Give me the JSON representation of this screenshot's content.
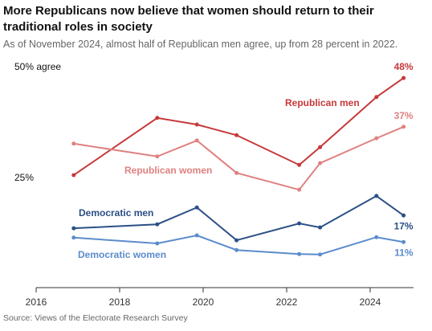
{
  "chart_data": {
    "type": "line",
    "title": "More Republicans now believe that women should return to their traditional roles in society",
    "subtitle": "As of November 2024, almost half of Republican men agree, up from 28 percent in 2022.",
    "source": "Source: Views of the Electorate Research Survey",
    "x": [
      2016.9,
      2018.9,
      2019.85,
      2020.8,
      2022.3,
      2022.8,
      2024.15,
      2024.8
    ],
    "series": [
      {
        "name": "Republican men",
        "color": "#c6393a",
        "values": [
          26.1,
          39.0,
          37.5,
          35.1,
          28.4,
          32.4,
          43.7,
          48
        ],
        "value_labels": [
          null,
          null,
          null,
          null,
          null,
          null,
          null,
          "48%"
        ]
      },
      {
        "name": "Republican women",
        "color": "#e08080",
        "values": [
          33.2,
          30.3,
          33.9,
          26.6,
          22.8,
          28.8,
          34.4,
          37
        ],
        "value_labels": [
          null,
          null,
          null,
          null,
          null,
          null,
          null,
          "37%"
        ]
      },
      {
        "name": "Democratic men",
        "color": "#2b4f86",
        "values": [
          14.1,
          15.0,
          18.8,
          11.4,
          15.2,
          14.3,
          21.4,
          17
        ],
        "value_labels": [
          null,
          null,
          null,
          null,
          null,
          null,
          null,
          "17%"
        ]
      },
      {
        "name": "Democratic women",
        "color": "#5b8ccc",
        "values": [
          12.0,
          10.7,
          12.5,
          9.2,
          8.3,
          8.2,
          12.1,
          11
        ],
        "value_labels": [
          null,
          null,
          null,
          null,
          null,
          null,
          null,
          "11%"
        ]
      }
    ],
    "xlim": [
      2016,
      2025
    ],
    "xticks": [
      2016,
      2018,
      2020,
      2022,
      2024
    ],
    "ylim": [
      0,
      52
    ],
    "yticks": [
      {
        "value": 25,
        "label": "25%"
      },
      {
        "value": 50,
        "label": "50% agree"
      }
    ],
    "grid": false
  }
}
